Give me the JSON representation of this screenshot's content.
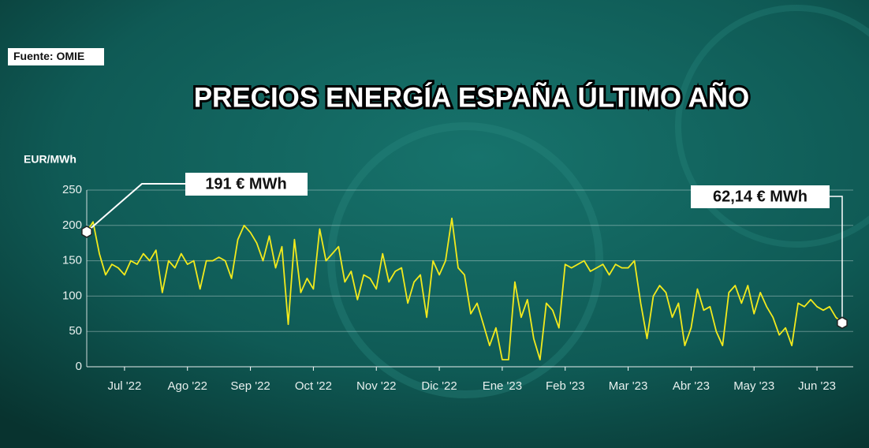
{
  "chart_data": {
    "type": "line",
    "title": "PRECIOS ENERGÍA ESPAÑA ÚLTIMO AÑO",
    "source": "Fuente: OMIE",
    "y_label": "EUR/MWh",
    "annotations": [
      "191 € MWh",
      "62,14 € MWh"
    ],
    "color": "#f2ea1c",
    "grid": true,
    "ylim": [
      0,
      250
    ],
    "yticks": [
      0,
      50,
      100,
      150,
      200,
      250
    ],
    "categories": [
      null,
      null,
      null,
      null,
      null,
      null,
      "Jul '22",
      null,
      null,
      null,
      null,
      null,
      null,
      null,
      null,
      null,
      "Ago '22",
      null,
      null,
      null,
      null,
      null,
      null,
      null,
      null,
      null,
      "Sep '22",
      null,
      null,
      null,
      null,
      null,
      null,
      null,
      null,
      null,
      "Oct '22",
      null,
      null,
      null,
      null,
      null,
      null,
      null,
      null,
      null,
      "Nov '22",
      null,
      null,
      null,
      null,
      null,
      null,
      null,
      null,
      null,
      "Dic '22",
      null,
      null,
      null,
      null,
      null,
      null,
      null,
      null,
      null,
      "Ene '23",
      null,
      null,
      null,
      null,
      null,
      null,
      null,
      null,
      null,
      "Feb '23",
      null,
      null,
      null,
      null,
      null,
      null,
      null,
      null,
      null,
      "Mar '23",
      null,
      null,
      null,
      null,
      null,
      null,
      null,
      null,
      null,
      "Abr '23",
      null,
      null,
      null,
      null,
      null,
      null,
      null,
      null,
      null,
      "May '23",
      null,
      null,
      null,
      null,
      null,
      null,
      null,
      null,
      null,
      "Jun '23",
      null,
      null,
      null,
      null
    ],
    "values": [
      191,
      205,
      160,
      130,
      145,
      140,
      130,
      150,
      145,
      160,
      150,
      165,
      105,
      150,
      140,
      160,
      145,
      150,
      110,
      150,
      150,
      155,
      150,
      125,
      180,
      200,
      190,
      175,
      150,
      185,
      140,
      170,
      60,
      180,
      105,
      125,
      110,
      195,
      150,
      160,
      170,
      120,
      135,
      95,
      130,
      125,
      110,
      160,
      120,
      135,
      140,
      90,
      120,
      130,
      70,
      150,
      130,
      150,
      210,
      140,
      130,
      75,
      90,
      60,
      30,
      55,
      10,
      10,
      120,
      70,
      95,
      40,
      10,
      90,
      80,
      55,
      145,
      140,
      145,
      150,
      135,
      140,
      145,
      130,
      145,
      140,
      140,
      150,
      90,
      40,
      100,
      115,
      105,
      70,
      90,
      30,
      55,
      110,
      80,
      85,
      50,
      30,
      105,
      115,
      90,
      115,
      75,
      105,
      85,
      70,
      45,
      55,
      30,
      90,
      85,
      95,
      85,
      80,
      85,
      70,
      62.14
    ]
  }
}
